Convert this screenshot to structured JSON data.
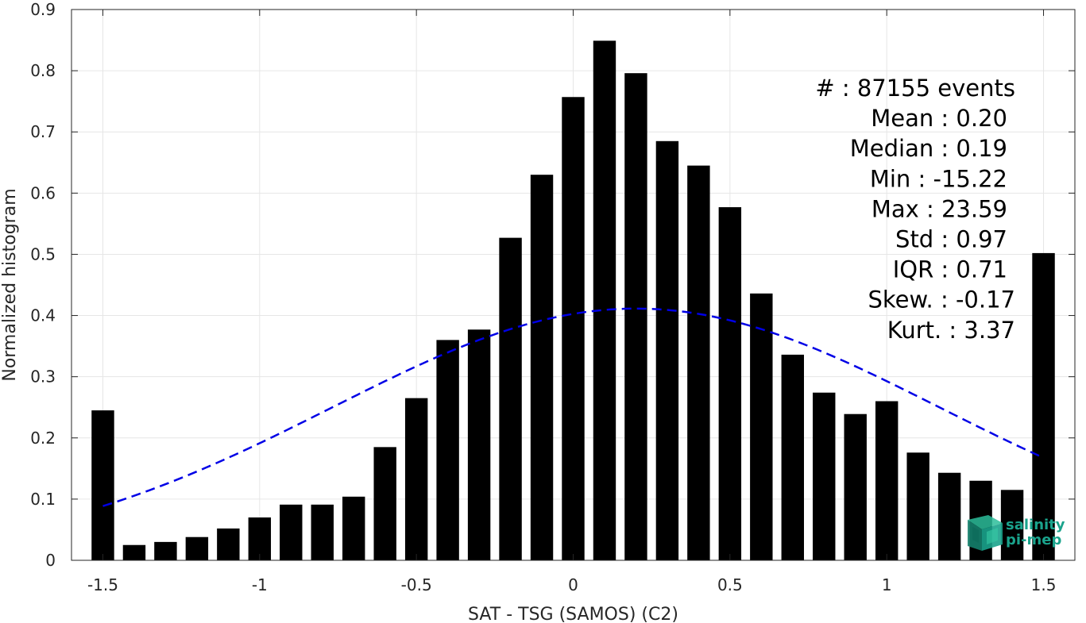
{
  "chart_data": {
    "type": "bar",
    "xlabel": "SAT - TSG (SAMOS) (C2)",
    "ylabel": "Normalized histogram",
    "xlim": [
      -1.6,
      1.6
    ],
    "ylim": [
      0,
      0.9
    ],
    "xticks": [
      "-1.5",
      "-1",
      "-0.5",
      "0",
      "0.5",
      "1",
      "1.5"
    ],
    "xtick_values": [
      -1.5,
      -1,
      -0.5,
      0,
      0.5,
      1,
      1.5
    ],
    "yticks": [
      "0",
      "0.1",
      "0.2",
      "0.3",
      "0.4",
      "0.5",
      "0.6",
      "0.7",
      "0.8",
      "0.9"
    ],
    "ytick_values": [
      0,
      0.1,
      0.2,
      0.3,
      0.4,
      0.5,
      0.6,
      0.7,
      0.8,
      0.9
    ],
    "grid": true,
    "bar_color": "#000000",
    "fit_color": "#0000e6",
    "bars": {
      "x": [
        -1.5,
        -1.4,
        -1.3,
        -1.2,
        -1.1,
        -1.0,
        -0.9,
        -0.8,
        -0.7,
        -0.6,
        -0.5,
        -0.4,
        -0.3,
        -0.2,
        -0.1,
        0.0,
        0.1,
        0.2,
        0.3,
        0.4,
        0.5,
        0.6,
        0.7,
        0.8,
        0.9,
        1.0,
        1.1,
        1.2,
        1.3,
        1.4,
        1.5
      ],
      "values": [
        0.245,
        0.025,
        0.03,
        0.038,
        0.052,
        0.07,
        0.091,
        0.091,
        0.104,
        0.185,
        0.265,
        0.36,
        0.377,
        0.527,
        0.63,
        0.757,
        0.849,
        0.796,
        0.685,
        0.645,
        0.577,
        0.436,
        0.336,
        0.274,
        0.239,
        0.26,
        0.176,
        0.143,
        0.13,
        0.115,
        0.502
      ]
    },
    "fit": {
      "style": "dashed",
      "mean": 0.2,
      "std": 0.97,
      "x_range": [
        -1.5,
        1.5
      ]
    },
    "annotations": [
      "#  : 87155 events",
      "Mean : 0.20",
      "Median : 0.19",
      "Min : -15.22",
      "Max : 23.59",
      "Std : 0.97",
      "IQR : 0.71",
      "Skew. : -0.17",
      "Kurt. : 3.37"
    ]
  },
  "logo": {
    "line1": "salinity",
    "line2": "pi-mep",
    "color": "#1aa38c"
  }
}
